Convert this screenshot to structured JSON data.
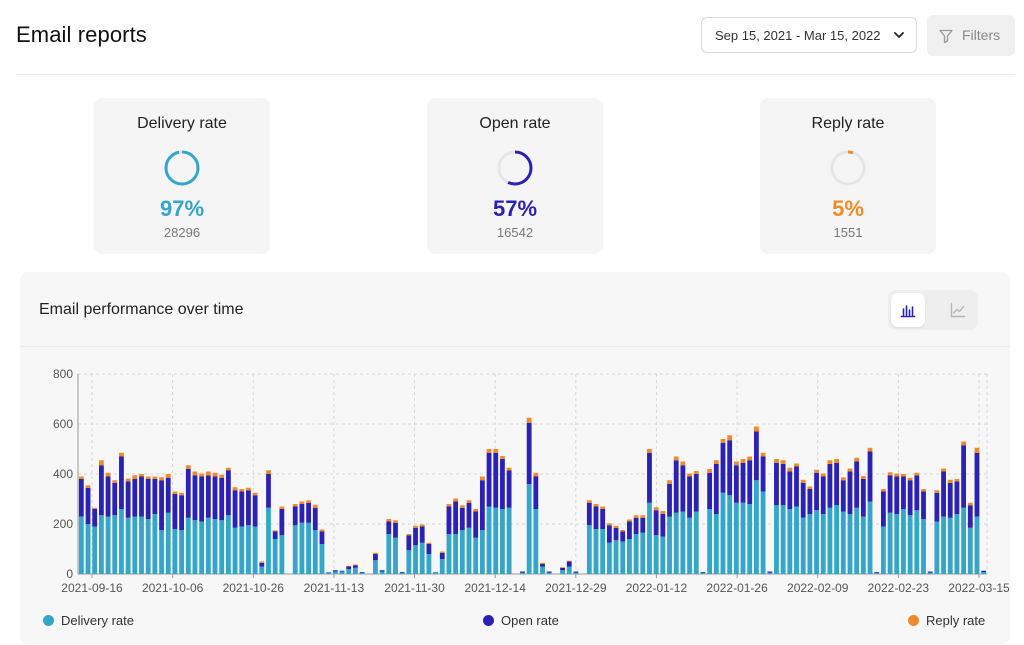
{
  "header": {
    "title": "Email reports",
    "date_range": "Sep 15, 2021 - Mar 15, 2022",
    "filters_label": "Filters"
  },
  "cards": [
    {
      "label": "Delivery rate",
      "percent": "97%",
      "count": "28296",
      "fraction": 0.97,
      "color": "#34a7c9"
    },
    {
      "label": "Open rate",
      "percent": "57%",
      "count": "16542",
      "fraction": 0.57,
      "color": "#2b22b3"
    },
    {
      "label": "Reply rate",
      "percent": "5%",
      "count": "1551",
      "fraction": 0.05,
      "color": "#f08b2c"
    }
  ],
  "panel": {
    "title": "Email performance over time",
    "view_buttons": [
      "bar-chart-icon",
      "line-chart-icon"
    ],
    "active_view": "bar"
  },
  "legend": [
    {
      "name": "Delivery rate",
      "color": "#34a7c9"
    },
    {
      "name": "Open rate",
      "color": "#2b22b3"
    },
    {
      "name": "Reply rate",
      "color": "#f08b2c"
    }
  ],
  "chart_data": {
    "type": "bar",
    "stacked": true,
    "ylim": [
      0,
      800
    ],
    "y_ticks": [
      0,
      200,
      400,
      600,
      800
    ],
    "x_tick_labels": [
      "2021-09-16",
      "2021-10-06",
      "2021-10-26",
      "2021-11-13",
      "2021-11-30",
      "2021-12-14",
      "2021-12-29",
      "2022-01-12",
      "2022-01-26",
      "2022-02-09",
      "2022-02-23",
      "2022-03-15"
    ],
    "grid": true,
    "legend_position": "bottom",
    "series": [
      {
        "name": "Delivery rate",
        "color": "#34a7c9",
        "values": [
          230,
          200,
          190,
          235,
          230,
          235,
          260,
          225,
          230,
          230,
          220,
          240,
          175,
          245,
          180,
          175,
          225,
          215,
          210,
          225,
          220,
          215,
          235,
          185,
          190,
          195,
          190,
          30,
          265,
          140,
          155,
          0,
          195,
          205,
          205,
          175,
          120,
          5,
          10,
          10,
          20,
          25,
          5,
          0,
          55,
          10,
          160,
          145,
          5,
          95,
          115,
          125,
          80,
          5,
          60,
          160,
          160,
          175,
          185,
          145,
          175,
          270,
          265,
          260,
          265,
          0,
          5,
          360,
          260,
          30,
          5,
          0,
          15,
          30,
          5,
          0,
          195,
          180,
          180,
          125,
          135,
          130,
          140,
          160,
          165,
          285,
          155,
          150,
          230,
          245,
          250,
          225,
          250,
          5,
          260,
          240,
          325,
          315,
          285,
          285,
          280,
          375,
          330,
          5,
          275,
          275,
          260,
          270,
          225,
          240,
          255,
          240,
          265,
          275,
          250,
          240,
          265,
          230,
          290,
          5,
          190,
          245,
          240,
          260,
          235,
          255,
          220,
          5,
          210,
          230,
          225,
          240,
          265,
          185,
          230,
          8
        ]
      },
      {
        "name": "Open rate",
        "color": "#2b22b3",
        "values": [
          150,
          145,
          70,
          200,
          160,
          130,
          210,
          145,
          150,
          160,
          160,
          140,
          200,
          140,
          140,
          140,
          195,
          180,
          180,
          170,
          170,
          170,
          180,
          150,
          140,
          140,
          125,
          15,
          135,
          30,
          105,
          0,
          75,
          75,
          80,
          90,
          50,
          2,
          5,
          3,
          10,
          10,
          3,
          0,
          25,
          5,
          50,
          60,
          3,
          60,
          70,
          65,
          40,
          2,
          25,
          110,
          130,
          90,
          100,
          105,
          200,
          215,
          220,
          200,
          150,
          0,
          5,
          245,
          130,
          10,
          5,
          0,
          10,
          20,
          5,
          0,
          90,
          90,
          80,
          70,
          50,
          40,
          70,
          65,
          60,
          200,
          100,
          90,
          130,
          210,
          185,
          165,
          150,
          3,
          145,
          200,
          200,
          220,
          150,
          160,
          175,
          195,
          140,
          5,
          170,
          165,
          150,
          160,
          140,
          100,
          150,
          150,
          175,
          170,
          125,
          170,
          185,
          150,
          200,
          3,
          140,
          150,
          150,
          130,
          140,
          140,
          110,
          5,
          115,
          180,
          140,
          130,
          250,
          90,
          255,
          5
        ]
      },
      {
        "name": "Reply rate",
        "color": "#f08b2c",
        "values": [
          10,
          10,
          5,
          20,
          15,
          10,
          15,
          12,
          15,
          10,
          10,
          10,
          12,
          15,
          10,
          10,
          15,
          15,
          12,
          15,
          15,
          12,
          10,
          12,
          10,
          10,
          10,
          5,
          15,
          5,
          10,
          0,
          10,
          10,
          10,
          12,
          8,
          0,
          0,
          0,
          3,
          3,
          0,
          0,
          5,
          0,
          10,
          10,
          0,
          5,
          8,
          8,
          5,
          0,
          5,
          10,
          12,
          10,
          10,
          10,
          15,
          15,
          15,
          12,
          10,
          0,
          0,
          20,
          15,
          5,
          0,
          0,
          2,
          3,
          0,
          0,
          10,
          10,
          10,
          8,
          8,
          6,
          8,
          10,
          10,
          15,
          12,
          12,
          15,
          15,
          15,
          12,
          12,
          0,
          15,
          15,
          15,
          20,
          15,
          15,
          15,
          20,
          15,
          0,
          15,
          15,
          15,
          12,
          12,
          10,
          12,
          12,
          15,
          15,
          12,
          12,
          15,
          12,
          15,
          0,
          10,
          12,
          12,
          10,
          10,
          10,
          10,
          0,
          10,
          12,
          12,
          10,
          15,
          10,
          20,
          0
        ]
      }
    ]
  }
}
